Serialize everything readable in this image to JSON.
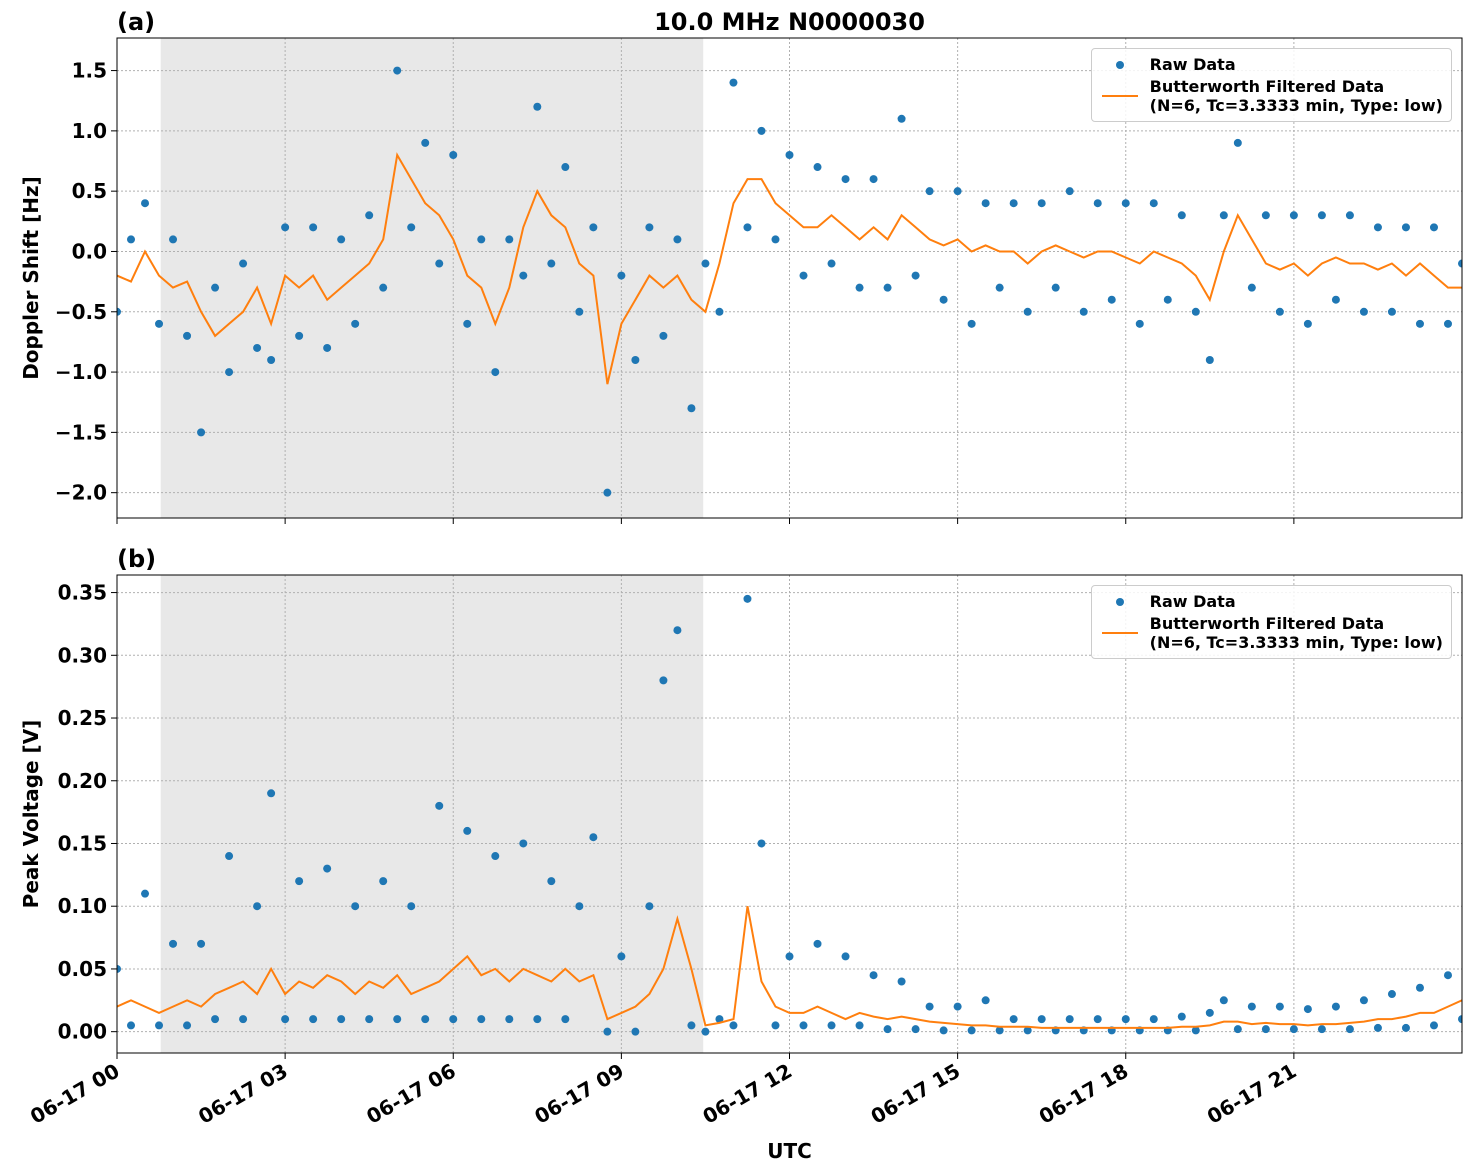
{
  "chart_data": [
    {
      "type": "line",
      "title": "10.0 MHz N0000030",
      "panel_label": "(a)",
      "ylabel": "Doppler Shift [Hz]",
      "xlim": [
        0,
        24
      ],
      "ylim": [
        -2.21,
        1.77
      ],
      "grid": true,
      "legend": "upper right",
      "shaded_span": [
        0.78,
        10.46
      ],
      "xticks": [
        {
          "value": 0,
          "label": "06-17 00"
        },
        {
          "value": 3,
          "label": "06-17 03"
        },
        {
          "value": 6,
          "label": "06-17 06"
        },
        {
          "value": 9,
          "label": "06-17 09"
        },
        {
          "value": 12,
          "label": "06-17 12"
        },
        {
          "value": 15,
          "label": "06-17 15"
        },
        {
          "value": 18,
          "label": "06-17 18"
        },
        {
          "value": 21,
          "label": "06-17 21"
        }
      ],
      "yticks": [
        {
          "value": -2.0,
          "label": "−2.0"
        },
        {
          "value": -1.5,
          "label": "−1.5"
        },
        {
          "value": -1.0,
          "label": "−1.0"
        },
        {
          "value": -0.5,
          "label": "−0.5"
        },
        {
          "value": 0,
          "label": "0.0"
        },
        0.5,
        {
          "value": 1.0,
          "label": "1.0"
        },
        1.5
      ],
      "x": [
        0,
        0.25,
        0.5,
        0.75,
        1,
        1.25,
        1.5,
        1.75,
        2,
        2.25,
        2.5,
        2.75,
        3,
        3.25,
        3.5,
        3.75,
        4,
        4.25,
        4.5,
        4.75,
        5,
        5.25,
        5.5,
        5.75,
        6,
        6.25,
        6.5,
        6.75,
        7,
        7.25,
        7.5,
        7.75,
        8,
        8.25,
        8.5,
        8.75,
        9,
        9.25,
        9.5,
        9.75,
        10,
        10.25,
        10.5,
        10.75,
        11,
        11.25,
        11.5,
        11.75,
        12,
        12.25,
        12.5,
        12.75,
        13,
        13.25,
        13.5,
        13.75,
        14,
        14.25,
        14.5,
        14.75,
        15,
        15.25,
        15.5,
        15.75,
        16,
        16.25,
        16.5,
        16.75,
        17,
        17.25,
        17.5,
        17.75,
        18,
        18.25,
        18.5,
        18.75,
        19,
        19.25,
        19.5,
        19.75,
        20,
        20.25,
        20.5,
        20.75,
        21,
        21.25,
        21.5,
        21.75,
        22,
        22.25,
        22.5,
        22.75,
        23,
        23.25,
        23.5,
        23.75,
        24
      ],
      "series": [
        {
          "name": "Raw Data",
          "style": "markers",
          "color": "#1f77b4",
          "values": [
            -0.5,
            0.1,
            0.4,
            -0.6,
            0.1,
            -0.7,
            -1.5,
            -0.3,
            -1.0,
            -0.1,
            -0.8,
            -0.9,
            0.2,
            -0.7,
            0.2,
            -0.8,
            0.1,
            -0.6,
            0.3,
            -0.3,
            1.5,
            0.2,
            0.9,
            -0.1,
            0.8,
            -0.6,
            0.1,
            -1.0,
            0.1,
            -0.2,
            1.2,
            -0.1,
            0.7,
            -0.5,
            0.2,
            -2.0,
            -0.2,
            -0.9,
            0.2,
            -0.7,
            0.1,
            -1.3,
            -0.1,
            -0.5,
            1.4,
            0.2,
            1.0,
            0.1,
            0.8,
            -0.2,
            0.7,
            -0.1,
            0.6,
            -0.3,
            0.6,
            -0.3,
            1.1,
            -0.2,
            0.5,
            -0.4,
            0.5,
            -0.6,
            0.4,
            -0.3,
            0.4,
            -0.5,
            0.4,
            -0.3,
            0.5,
            -0.5,
            0.4,
            -0.4,
            0.4,
            -0.6,
            0.4,
            -0.4,
            0.3,
            -0.5,
            -0.9,
            0.3,
            0.9,
            -0.3,
            0.3,
            -0.5,
            0.3,
            -0.6,
            0.3,
            -0.4,
            0.3,
            -0.5,
            0.2,
            -0.5,
            0.2,
            -0.6,
            0.2,
            -0.6,
            -0.1
          ]
        },
        {
          "name": "Butterworth Filtered Data\n(N=6, Tc=3.3333 min, Type: low)",
          "style": "line",
          "color": "#ff7f0e",
          "values": [
            -0.2,
            -0.25,
            0.0,
            -0.2,
            -0.3,
            -0.25,
            -0.5,
            -0.7,
            -0.6,
            -0.5,
            -0.3,
            -0.6,
            -0.2,
            -0.3,
            -0.2,
            -0.4,
            -0.3,
            -0.2,
            -0.1,
            0.1,
            0.8,
            0.6,
            0.4,
            0.3,
            0.1,
            -0.2,
            -0.3,
            -0.6,
            -0.3,
            0.2,
            0.5,
            0.3,
            0.2,
            -0.1,
            -0.2,
            -1.1,
            -0.6,
            -0.4,
            -0.2,
            -0.3,
            -0.2,
            -0.4,
            -0.5,
            -0.1,
            0.4,
            0.6,
            0.6,
            0.4,
            0.3,
            0.2,
            0.2,
            0.3,
            0.2,
            0.1,
            0.2,
            0.1,
            0.3,
            0.2,
            0.1,
            0.05,
            0.1,
            0.0,
            0.05,
            0.0,
            0.0,
            -0.1,
            0.0,
            0.05,
            0.0,
            -0.05,
            0.0,
            0.0,
            -0.05,
            -0.1,
            0.0,
            -0.05,
            -0.1,
            -0.2,
            -0.4,
            0.0,
            0.3,
            0.1,
            -0.1,
            -0.15,
            -0.1,
            -0.2,
            -0.1,
            -0.05,
            -0.1,
            -0.1,
            -0.15,
            -0.1,
            -0.2,
            -0.1,
            -0.2,
            -0.3,
            -0.3
          ]
        }
      ]
    },
    {
      "type": "line",
      "panel_label": "(b)",
      "ylabel": "Peak Voltage [V]",
      "xlabel": "UTC",
      "xlim": [
        0,
        24
      ],
      "ylim": [
        -0.017,
        0.364
      ],
      "grid": true,
      "legend": "upper right",
      "shaded_span": [
        0.78,
        10.46
      ],
      "xticks": [
        {
          "value": 0,
          "label": "06-17 00"
        },
        {
          "value": 3,
          "label": "06-17 03"
        },
        {
          "value": 6,
          "label": "06-17 06"
        },
        {
          "value": 9,
          "label": "06-17 09"
        },
        {
          "value": 12,
          "label": "06-17 12"
        },
        {
          "value": 15,
          "label": "06-17 15"
        },
        {
          "value": 18,
          "label": "06-17 18"
        },
        {
          "value": 21,
          "label": "06-17 21"
        }
      ],
      "yticks": [
        {
          "value": 0,
          "label": "0.00"
        },
        0.05,
        {
          "value": 0.1,
          "label": "0.10"
        },
        0.15,
        {
          "value": 0.2,
          "label": "0.20"
        },
        0.25,
        {
          "value": 0.3,
          "label": "0.30"
        },
        0.35
      ],
      "x": [
        0,
        0.25,
        0.5,
        0.75,
        1,
        1.25,
        1.5,
        1.75,
        2,
        2.25,
        2.5,
        2.75,
        3,
        3.25,
        3.5,
        3.75,
        4,
        4.25,
        4.5,
        4.75,
        5,
        5.25,
        5.5,
        5.75,
        6,
        6.25,
        6.5,
        6.75,
        7,
        7.25,
        7.5,
        7.75,
        8,
        8.25,
        8.5,
        8.75,
        9,
        9.25,
        9.5,
        9.75,
        10,
        10.25,
        10.5,
        10.75,
        11,
        11.25,
        11.5,
        11.75,
        12,
        12.25,
        12.5,
        12.75,
        13,
        13.25,
        13.5,
        13.75,
        14,
        14.25,
        14.5,
        14.75,
        15,
        15.25,
        15.5,
        15.75,
        16,
        16.25,
        16.5,
        16.75,
        17,
        17.25,
        17.5,
        17.75,
        18,
        18.25,
        18.5,
        18.75,
        19,
        19.25,
        19.5,
        19.75,
        20,
        20.25,
        20.5,
        20.75,
        21,
        21.25,
        21.5,
        21.75,
        22,
        22.25,
        22.5,
        22.75,
        23,
        23.25,
        23.5,
        23.75,
        24
      ],
      "series": [
        {
          "name": "Raw Data",
          "style": "markers",
          "color": "#1f77b4",
          "values": [
            0.05,
            0.005,
            0.11,
            0.005,
            0.07,
            0.005,
            0.07,
            0.01,
            0.14,
            0.01,
            0.1,
            0.19,
            0.01,
            0.12,
            0.01,
            0.13,
            0.01,
            0.1,
            0.01,
            0.12,
            0.01,
            0.1,
            0.01,
            0.18,
            0.01,
            0.16,
            0.01,
            0.14,
            0.01,
            0.15,
            0.01,
            0.12,
            0.01,
            0.1,
            0.155,
            0.0,
            0.06,
            0.0,
            0.1,
            0.28,
            0.32,
            0.005,
            0.0,
            0.01,
            0.005,
            0.345,
            0.15,
            0.005,
            0.06,
            0.005,
            0.07,
            0.005,
            0.06,
            0.005,
            0.045,
            0.002,
            0.04,
            0.002,
            0.02,
            0.001,
            0.02,
            0.001,
            0.025,
            0.001,
            0.01,
            0.001,
            0.01,
            0.001,
            0.01,
            0.001,
            0.01,
            0.001,
            0.01,
            0.001,
            0.01,
            0.001,
            0.012,
            0.001,
            0.015,
            0.025,
            0.002,
            0.02,
            0.002,
            0.02,
            0.002,
            0.018,
            0.002,
            0.02,
            0.002,
            0.025,
            0.003,
            0.03,
            0.003,
            0.035,
            0.005,
            0.045,
            0.01
          ]
        },
        {
          "name": "Butterworth Filtered Data\n(N=6, Tc=3.3333 min, Type: low)",
          "style": "line",
          "color": "#ff7f0e",
          "values": [
            0.02,
            0.025,
            0.02,
            0.015,
            0.02,
            0.025,
            0.02,
            0.03,
            0.035,
            0.04,
            0.03,
            0.05,
            0.03,
            0.04,
            0.035,
            0.045,
            0.04,
            0.03,
            0.04,
            0.035,
            0.045,
            0.03,
            0.035,
            0.04,
            0.05,
            0.06,
            0.045,
            0.05,
            0.04,
            0.05,
            0.045,
            0.04,
            0.05,
            0.04,
            0.045,
            0.01,
            0.015,
            0.02,
            0.03,
            0.05,
            0.09,
            0.05,
            0.005,
            0.007,
            0.01,
            0.1,
            0.04,
            0.02,
            0.015,
            0.015,
            0.02,
            0.015,
            0.01,
            0.015,
            0.012,
            0.01,
            0.012,
            0.01,
            0.008,
            0.007,
            0.006,
            0.005,
            0.005,
            0.004,
            0.004,
            0.004,
            0.003,
            0.003,
            0.003,
            0.003,
            0.003,
            0.003,
            0.003,
            0.003,
            0.003,
            0.003,
            0.004,
            0.004,
            0.005,
            0.008,
            0.008,
            0.006,
            0.007,
            0.006,
            0.006,
            0.005,
            0.006,
            0.006,
            0.007,
            0.008,
            0.01,
            0.01,
            0.012,
            0.015,
            0.015,
            0.02,
            0.025
          ]
        }
      ]
    }
  ]
}
